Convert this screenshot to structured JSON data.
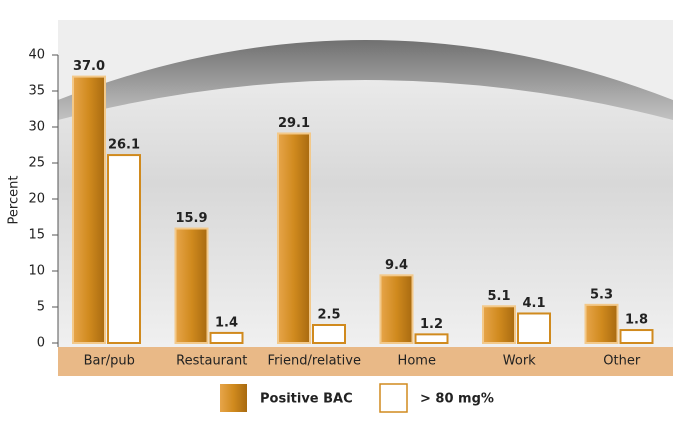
{
  "chart_data": {
    "type": "bar",
    "categories": [
      "Bar/pub",
      "Restaurant",
      "Friend/relative",
      "Home",
      "Work",
      "Other"
    ],
    "series": [
      {
        "name": "Positive BAC",
        "color": "#d08a1e",
        "values": [
          37.0,
          15.9,
          29.1,
          9.4,
          5.1,
          5.3
        ],
        "value_labels": [
          "37.0",
          "15.9",
          "29.1",
          "9.4",
          "5.1",
          "5.3"
        ]
      },
      {
        "name": "> 80 mg%",
        "color": "#ffffff",
        "values": [
          26.1,
          1.4,
          2.5,
          1.2,
          4.1,
          1.8
        ]
      }
    ],
    "y_label": "Percent",
    "ylim": [
      0,
      40
    ],
    "yticks": [
      0,
      5,
      10,
      15,
      20,
      25,
      30,
      35,
      40
    ]
  }
}
